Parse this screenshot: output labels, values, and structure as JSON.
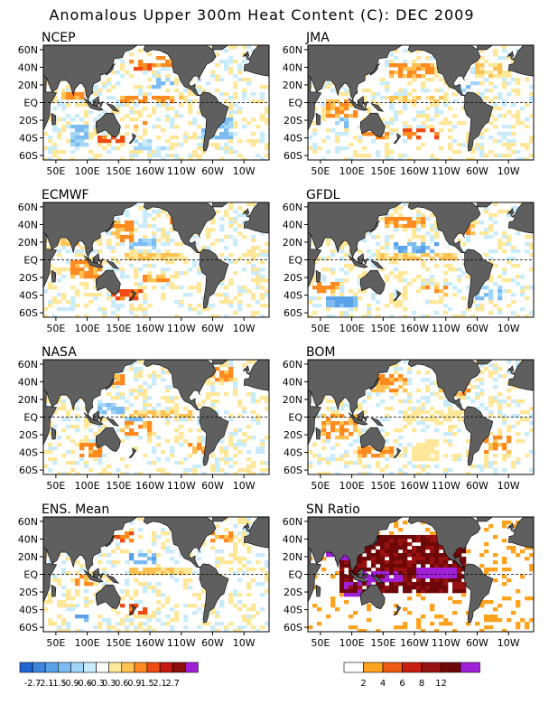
{
  "title": "Anomalous Upper 300m Heat Content (C): DEC 2009",
  "chart_data": {
    "type": "heatmap",
    "title": "Anomalous Upper 300m Heat Content (C): DEC 2009",
    "lat_ticks": [
      "60N",
      "40N",
      "20N",
      "EQ",
      "20S",
      "40S",
      "60S"
    ],
    "lon_ticks": [
      "50E",
      "100E",
      "150E",
      "160W",
      "110W",
      "60W",
      "10W"
    ],
    "lat_range": [
      -65,
      65
    ],
    "lon_range": [
      30,
      390
    ],
    "equator_dashed": true,
    "land_color": "#5f5f5f",
    "panels": [
      {
        "name": "NCEP",
        "warm": [
          [
            150,
            250,
            0,
            9,
            3,
            0.8
          ],
          [
            60,
            95,
            2,
            12,
            3,
            0.9
          ],
          [
            165,
            210,
            35,
            48,
            4,
            0.7
          ],
          [
            120,
            160,
            -45,
            -38,
            4,
            0.8
          ],
          [
            200,
            290,
            40,
            52,
            3,
            0.6
          ],
          [
            165,
            200,
            -30,
            -20,
            3,
            0.6
          ]
        ],
        "cool": [
          [
            75,
            100,
            -50,
            -25,
            3,
            0.9
          ],
          [
            165,
            225,
            -55,
            -40,
            2,
            0.6
          ],
          [
            280,
            330,
            -40,
            -15,
            3,
            0.7
          ],
          [
            200,
            240,
            15,
            30,
            3,
            0.5
          ]
        ]
      },
      {
        "name": "JMA",
        "warm": [
          [
            150,
            250,
            0,
            9,
            2,
            0.8
          ],
          [
            60,
            110,
            -15,
            5,
            3,
            0.7
          ],
          [
            120,
            160,
            -42,
            -35,
            3,
            0.8
          ],
          [
            160,
            230,
            30,
            45,
            3,
            0.7
          ],
          [
            175,
            240,
            -40,
            -30,
            4,
            0.6
          ],
          [
            300,
            340,
            30,
            45,
            2,
            0.8
          ]
        ],
        "cool": [
          [
            70,
            100,
            -30,
            -15,
            3,
            0.6
          ],
          [
            260,
            300,
            10,
            25,
            3,
            0.5
          ]
        ]
      },
      {
        "name": "ECMWF",
        "warm": [
          [
            160,
            260,
            0,
            8,
            2,
            0.9
          ],
          [
            75,
            125,
            -20,
            0,
            3,
            0.8
          ],
          [
            140,
            190,
            -46,
            -34,
            4,
            0.8
          ],
          [
            140,
            175,
            20,
            45,
            3,
            0.8
          ],
          [
            190,
            230,
            -25,
            -15,
            3,
            0.7
          ],
          [
            230,
            280,
            35,
            50,
            3,
            0.6
          ],
          [
            60,
            85,
            15,
            25,
            2,
            0.6
          ]
        ],
        "cool": [
          [
            170,
            210,
            10,
            25,
            3,
            0.6
          ]
        ]
      },
      {
        "name": "GFDL",
        "warm": [
          [
            140,
            265,
            -2,
            7,
            2,
            0.8
          ],
          [
            150,
            220,
            35,
            50,
            3,
            0.8
          ],
          [
            285,
            305,
            30,
            40,
            3,
            0.7
          ],
          [
            40,
            80,
            -38,
            -25,
            3,
            0.6
          ],
          [
            210,
            250,
            -40,
            -28,
            3,
            0.5
          ]
        ],
        "cool": [
          [
            60,
            110,
            -55,
            -40,
            4,
            1.0
          ],
          [
            170,
            240,
            5,
            20,
            4,
            0.6
          ],
          [
            300,
            340,
            -45,
            -30,
            3,
            0.5
          ]
        ]
      },
      {
        "name": "NASA",
        "warm": [
          [
            170,
            265,
            -1,
            7,
            2,
            0.9
          ],
          [
            125,
            165,
            35,
            48,
            3,
            0.8
          ],
          [
            300,
            335,
            40,
            55,
            3,
            0.8
          ],
          [
            90,
            120,
            -45,
            -30,
            3,
            0.7
          ],
          [
            150,
            200,
            -20,
            -5,
            3,
            0.6
          ],
          [
            260,
            290,
            -40,
            -30,
            3,
            0.6
          ]
        ],
        "cool": [
          [
            120,
            160,
            5,
            15,
            3,
            0.7
          ],
          [
            160,
            200,
            -5,
            5,
            3,
            0.5
          ]
        ]
      },
      {
        "name": "BOM",
        "warm": [
          [
            180,
            275,
            -3,
            9,
            1,
            1.0
          ],
          [
            195,
            240,
            -48,
            -28,
            1,
            1.0
          ],
          [
            55,
            110,
            -25,
            5,
            3,
            0.7
          ],
          [
            110,
            170,
            -45,
            -35,
            3,
            0.7
          ],
          [
            130,
            190,
            30,
            50,
            3,
            0.7
          ],
          [
            240,
            290,
            25,
            40,
            3,
            0.6
          ],
          [
            310,
            360,
            -40,
            -20,
            3,
            0.6
          ]
        ],
        "cool": [
          [
            260,
            290,
            10,
            18,
            3,
            0.4
          ]
        ]
      },
      {
        "name": "ENS. Mean",
        "warm": [
          [
            170,
            265,
            -1,
            7,
            2,
            0.9
          ],
          [
            120,
            175,
            35,
            48,
            4,
            0.7
          ],
          [
            80,
            110,
            -12,
            0,
            3,
            0.7
          ],
          [
            300,
            330,
            35,
            50,
            3,
            0.6
          ],
          [
            150,
            195,
            -45,
            -35,
            4,
            0.6
          ]
        ],
        "cool": [
          [
            80,
            105,
            -55,
            -40,
            4,
            0.8
          ],
          [
            165,
            210,
            10,
            25,
            4,
            0.6
          ],
          [
            60,
            90,
            25,
            45,
            3,
            0.4
          ]
        ]
      },
      {
        "name": "SN Ratio",
        "warm": [
          [
            80,
            280,
            -20,
            45,
            5,
            0.9
          ],
          [
            200,
            270,
            -5,
            6,
            8,
            1.0
          ],
          [
            110,
            180,
            -10,
            5,
            7,
            0.8
          ],
          [
            90,
            130,
            -25,
            -10,
            6,
            0.6
          ],
          [
            60,
            110,
            15,
            40,
            6,
            0.6
          ]
        ],
        "cool": []
      }
    ],
    "colorbar_anomaly": {
      "labels": [
        "-2.7",
        "-2.1",
        "-1.5",
        "-0.9",
        "-0.6",
        "-0.3",
        "0.3",
        "0.6",
        "0.9",
        "1.5",
        "2.1",
        "2.7"
      ],
      "colors": [
        "#2164d4",
        "#3d86e0",
        "#5aa1ea",
        "#7cbcf2",
        "#a2d6f8",
        "#c9ecfb",
        "#ffffff",
        "#ffe79a",
        "#ffc253",
        "#ff8a1f",
        "#f04b12",
        "#c41a10",
        "#8e0d0d",
        "#a020d8"
      ]
    },
    "colorbar_sn": {
      "labels": [
        "2",
        "4",
        "6",
        "8",
        "12"
      ],
      "colors": [
        "#ffffff",
        "#ffa31f",
        "#f05a12",
        "#c81e10",
        "#981010",
        "#6e0808",
        "#a020d8"
      ]
    }
  }
}
